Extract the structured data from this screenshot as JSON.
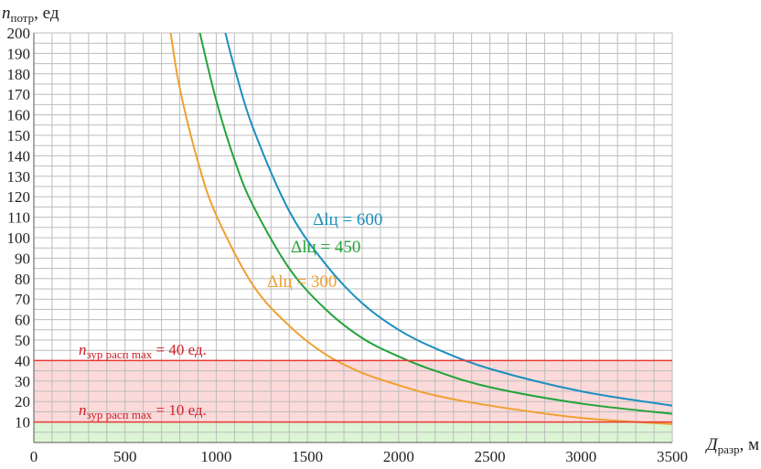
{
  "chart_data": {
    "type": "line",
    "title": "",
    "ylabel": {
      "main": "n",
      "sub": "потр",
      "unit": ", ед"
    },
    "xlabel": {
      "main": "Д",
      "sub": "разр",
      "unit": ", м"
    },
    "xlim": [
      0,
      3500
    ],
    "ylim": [
      0,
      200
    ],
    "xticks": [
      "0",
      "500",
      "1000",
      "1500",
      "2000",
      "2500",
      "3000",
      "3500"
    ],
    "yticks": [
      "10",
      "20",
      "30",
      "40",
      "50",
      "60",
      "70",
      "80",
      "90",
      "100",
      "110",
      "120",
      "130",
      "140",
      "150",
      "160",
      "170",
      "180",
      "190",
      "200"
    ],
    "grid": true,
    "series": [
      {
        "name": "Δlц = 300",
        "color": "#f0a030",
        "x": [
          750,
          800,
          900,
          1000,
          1200,
          1400,
          1600,
          1800,
          2000,
          2200,
          2500,
          3000,
          3500
        ],
        "values": [
          200,
          173,
          137,
          111,
          77,
          57,
          43,
          34,
          28,
          23,
          18,
          12,
          9
        ]
      },
      {
        "name": "Δlц = 450",
        "color": "#22a33a",
        "x": [
          910,
          1000,
          1100,
          1200,
          1400,
          1600,
          1800,
          2000,
          2200,
          2500,
          3000,
          3500
        ],
        "values": [
          200,
          167,
          138,
          116,
          85,
          65,
          51,
          42,
          35,
          27,
          19,
          14
        ]
      },
      {
        "name": "Δlц = 600",
        "color": "#1b8fbf",
        "x": [
          1050,
          1100,
          1200,
          1400,
          1600,
          1800,
          2000,
          2200,
          2500,
          3000,
          3500
        ],
        "values": [
          200,
          183,
          154,
          113,
          87,
          68,
          55,
          46,
          36,
          25,
          18
        ]
      }
    ],
    "limits": [
      {
        "label_main": "n",
        "label_sub": "зур расп max",
        "label_rest": " = 40 ед.",
        "value": 40,
        "color": "#e53935",
        "fill": "#fcdada"
      },
      {
        "label_main": "n",
        "label_sub": "зур расп max",
        "label_rest": " = 10 ед.",
        "value": 10,
        "color": "#e53935",
        "fill": "#dcf5d4"
      }
    ]
  }
}
